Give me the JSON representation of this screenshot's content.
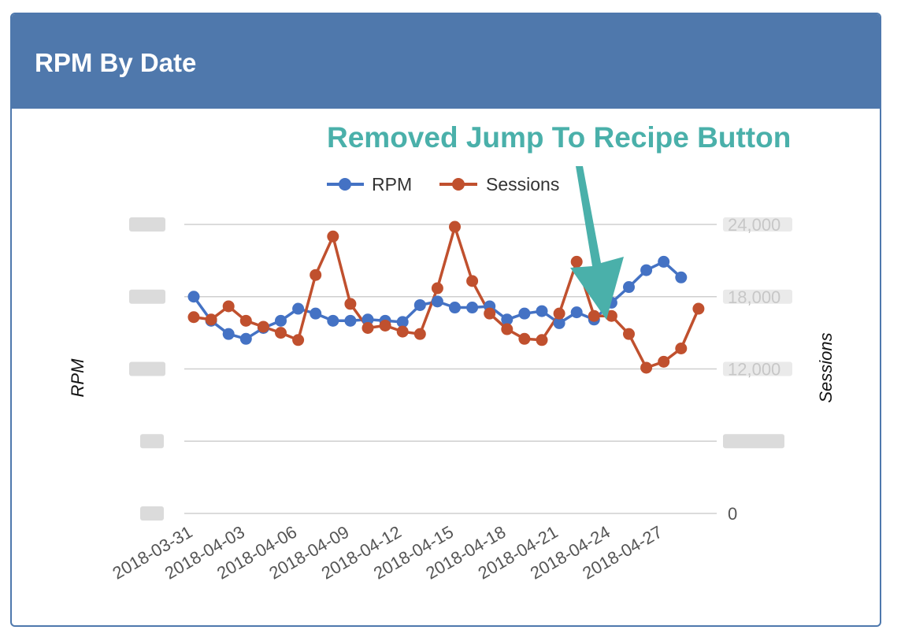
{
  "header": {
    "title": "RPM By Date"
  },
  "annotation": {
    "text": "Removed Jump To Recipe Button",
    "color": "#4ab0aa"
  },
  "colors": {
    "header_bg": "#4f78ac",
    "rpm": "#4472c4",
    "sessions": "#c0502e",
    "grid": "#cfcfcf"
  },
  "chart_data": {
    "type": "line",
    "ylabel": "RPM",
    "y2label": "Sessions",
    "x_tick_labels": [
      "2018-03-31",
      "2018-04-03",
      "2018-04-06",
      "2018-04-09",
      "2018-04-12",
      "2018-04-15",
      "2018-04-18",
      "2018-04-21",
      "2018-04-24",
      "2018-04-27"
    ],
    "right_tick_labels": [
      "0",
      "",
      "12,000",
      "18,000",
      "24,000"
    ],
    "y2lim": [
      0,
      24000
    ],
    "legend_position": "top-center",
    "grid": true,
    "series": [
      {
        "name": "RPM",
        "axis": "left",
        "values": [
          18.0,
          16.0,
          14.9,
          14.5,
          15.4,
          16.0,
          17.0,
          16.6,
          16.0,
          16.0,
          16.1,
          16.0,
          15.9,
          17.3,
          17.6,
          17.1,
          17.1,
          17.2,
          16.1,
          16.6,
          16.8,
          15.8,
          16.7,
          16.1,
          17.5,
          18.8,
          20.2,
          20.9,
          19.6
        ]
      },
      {
        "name": "Sessions",
        "axis": "right",
        "values": [
          16300,
          16100,
          17200,
          16000,
          15500,
          15000,
          14400,
          19800,
          23000,
          17400,
          15400,
          15600,
          15100,
          14900,
          18700,
          23800,
          19300,
          16600,
          15300,
          14500,
          14400,
          16600,
          20900,
          16400,
          16400,
          14900,
          12100,
          12600,
          13700,
          17000
        ]
      }
    ]
  }
}
